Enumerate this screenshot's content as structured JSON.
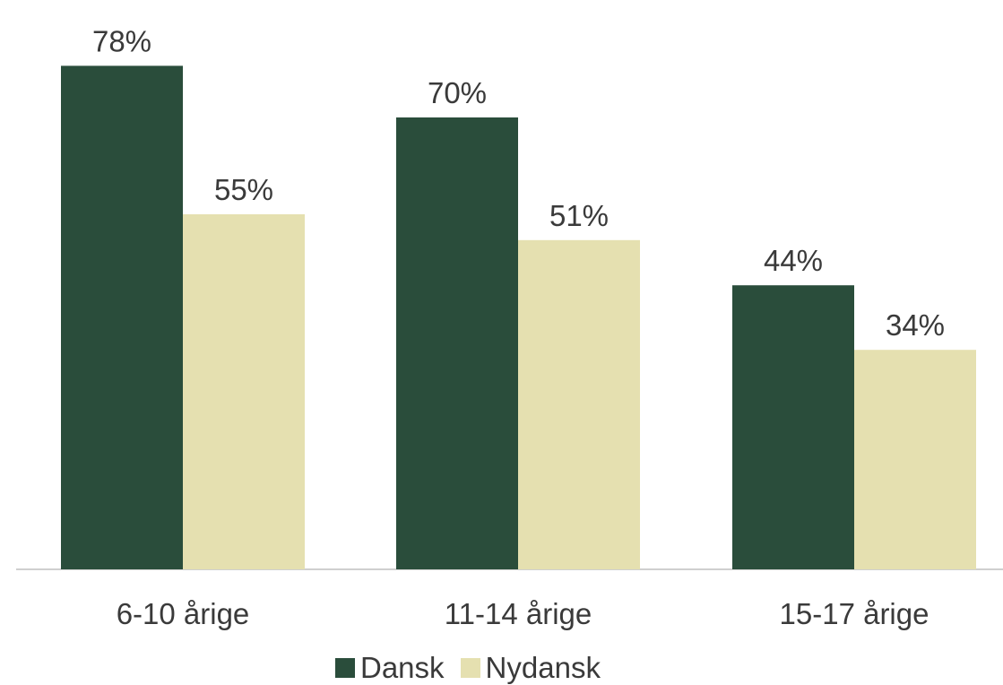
{
  "chart_data": {
    "type": "bar",
    "categories": [
      "6-10 årige",
      "11-14 årige",
      "15-17 årige"
    ],
    "series": [
      {
        "name": "Dansk",
        "values": [
          78,
          70,
          44
        ],
        "labels": [
          "78%",
          "70%",
          "44%"
        ],
        "color": "#2a4d3b"
      },
      {
        "name": "Nydansk",
        "values": [
          55,
          51,
          34
        ],
        "labels": [
          "55%",
          "51%",
          "34%"
        ],
        "color": "#e5e0b0"
      }
    ],
    "ylim": [
      0,
      85
    ],
    "grid": false,
    "legend_position": "bottom"
  }
}
